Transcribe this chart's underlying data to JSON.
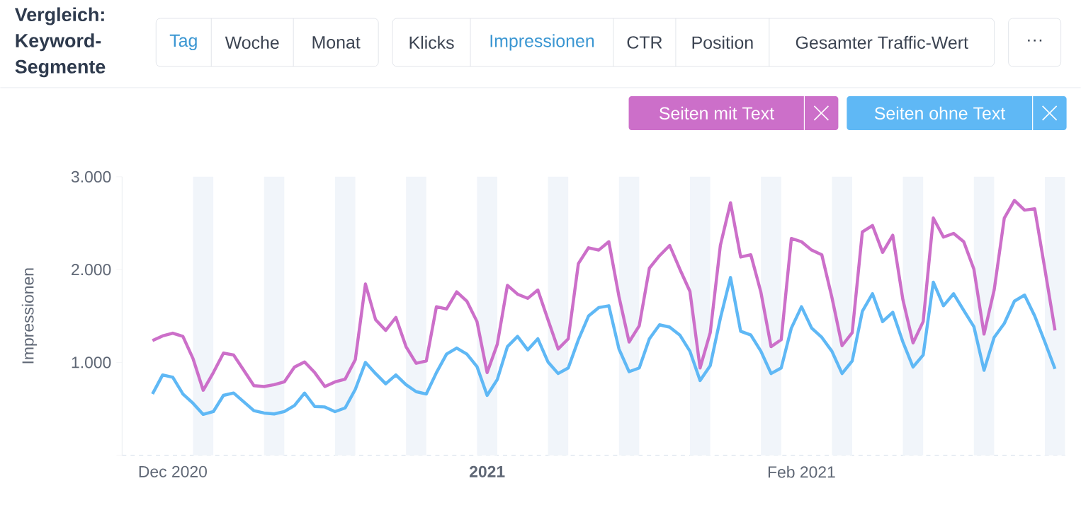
{
  "chart_data": {
    "type": "line",
    "title": "Vergleich: Keyword-Segmente",
    "ylabel": "Impressionen",
    "annotations": [
      "Tag",
      "Woche",
      "Monat",
      "Klicks",
      "Impressionen",
      "CTR",
      "Position",
      "Gesamter Traffic-Wert",
      "···"
    ],
    "x": [
      "2020-11-29",
      "2020-11-30",
      "2020-12-01",
      "2020-12-02",
      "2020-12-03",
      "2020-12-04",
      "2020-12-05",
      "2020-12-06",
      "2020-12-07",
      "2020-12-08",
      "2020-12-09",
      "2020-12-10",
      "2020-12-11",
      "2020-12-12",
      "2020-12-13",
      "2020-12-14",
      "2020-12-15",
      "2020-12-16",
      "2020-12-17",
      "2020-12-18",
      "2020-12-19",
      "2020-12-20",
      "2020-12-21",
      "2020-12-22",
      "2020-12-23",
      "2020-12-24",
      "2020-12-25",
      "2020-12-26",
      "2020-12-27",
      "2020-12-28",
      "2020-12-29",
      "2020-12-30",
      "2020-12-31",
      "2021-01-01",
      "2021-01-02",
      "2021-01-03",
      "2021-01-04",
      "2021-01-05",
      "2021-01-06",
      "2021-01-07",
      "2021-01-08",
      "2021-01-09",
      "2021-01-10",
      "2021-01-11",
      "2021-01-12",
      "2021-01-13",
      "2021-01-14",
      "2021-01-15",
      "2021-01-16",
      "2021-01-17",
      "2021-01-18",
      "2021-01-19",
      "2021-01-20",
      "2021-01-21",
      "2021-01-22",
      "2021-01-23",
      "2021-01-24",
      "2021-01-25",
      "2021-01-26",
      "2021-01-27",
      "2021-01-28",
      "2021-01-29",
      "2021-01-30",
      "2021-01-31",
      "2021-02-01",
      "2021-02-02",
      "2021-02-03",
      "2021-02-04",
      "2021-02-05",
      "2021-02-06",
      "2021-02-07",
      "2021-02-08",
      "2021-02-09",
      "2021-02-10",
      "2021-02-11",
      "2021-02-12",
      "2021-02-13",
      "2021-02-14",
      "2021-02-15",
      "2021-02-16",
      "2021-02-17",
      "2021-02-18",
      "2021-02-19",
      "2021-02-20",
      "2021-02-21",
      "2021-02-22",
      "2021-02-23",
      "2021-02-24",
      "2021-02-25",
      "2021-02-26"
    ],
    "series": [
      {
        "name": "Seiten mit Text",
        "color": "#cc6fc9",
        "values": [
          1235,
          1285,
          1315,
          1280,
          1040,
          700,
          890,
          1100,
          1080,
          915,
          750,
          740,
          760,
          790,
          950,
          1005,
          890,
          740,
          790,
          820,
          1030,
          1845,
          1460,
          1345,
          1485,
          1170,
          990,
          1015,
          1600,
          1575,
          1760,
          1660,
          1440,
          890,
          1195,
          1830,
          1735,
          1690,
          1780,
          1460,
          1145,
          1255,
          2065,
          2235,
          2210,
          2300,
          1710,
          1220,
          1395,
          2015,
          2150,
          2260,
          2005,
          1765,
          940,
          1320,
          2260,
          2720,
          2135,
          2160,
          1755,
          1170,
          1245,
          2335,
          2300,
          2210,
          2160,
          1700,
          1180,
          1320,
          2405,
          2475,
          2185,
          2370,
          1675,
          1210,
          1440,
          2555,
          2350,
          2390,
          2300,
          2005,
          1305,
          1780,
          2555,
          2745,
          2640,
          2655,
          2005,
          1345
        ]
      },
      {
        "name": "Seiten ohne Text",
        "color": "#5fb8f5",
        "values": [
          660,
          865,
          840,
          660,
          560,
          440,
          470,
          645,
          670,
          575,
          480,
          455,
          445,
          470,
          535,
          670,
          525,
          520,
          470,
          510,
          710,
          1000,
          880,
          770,
          865,
          760,
          685,
          660,
          890,
          1090,
          1155,
          1090,
          955,
          645,
          815,
          1170,
          1280,
          1135,
          1255,
          1005,
          880,
          940,
          1245,
          1500,
          1590,
          1610,
          1145,
          900,
          940,
          1255,
          1405,
          1380,
          1295,
          1120,
          805,
          965,
          1475,
          1915,
          1335,
          1295,
          1120,
          880,
          940,
          1370,
          1600,
          1370,
          1270,
          1120,
          880,
          1015,
          1550,
          1740,
          1440,
          1540,
          1220,
          950,
          1080,
          1865,
          1610,
          1740,
          1560,
          1385,
          915,
          1270,
          1420,
          1660,
          1725,
          1500,
          1220,
          930
        ]
      }
    ],
    "xlim": [
      "2020-11-26",
      "2021-02-27"
    ],
    "ylim": [
      0,
      3000
    ],
    "xticks": [
      {
        "value": "2020-12-01",
        "label": "Dec 2020"
      },
      {
        "value": "2021-01-01",
        "label": "2021"
      },
      {
        "value": "2021-02-01",
        "label": "Feb 2021"
      }
    ],
    "yticks": [
      {
        "value": 0,
        "label": null
      },
      {
        "value": 1000,
        "label": "1.000"
      },
      {
        "value": 2000,
        "label": "2.000"
      },
      {
        "value": 3000,
        "label": "3.000"
      }
    ],
    "bands": [
      {
        "axis": "x",
        "from": "2020-12-03",
        "to": "2020-12-05",
        "color": "#f1f5fa"
      },
      {
        "axis": "x",
        "from": "2020-12-10",
        "to": "2020-12-12",
        "color": "#f1f5fa"
      },
      {
        "axis": "x",
        "from": "2020-12-17",
        "to": "2020-12-19",
        "color": "#f1f5fa"
      },
      {
        "axis": "x",
        "from": "2020-12-24",
        "to": "2020-12-26",
        "color": "#f1f5fa"
      },
      {
        "axis": "x",
        "from": "2020-12-31",
        "to": "2021-01-02",
        "color": "#f1f5fa"
      },
      {
        "axis": "x",
        "from": "2021-01-07",
        "to": "2021-01-09",
        "color": "#f1f5fa"
      },
      {
        "axis": "x",
        "from": "2021-01-14",
        "to": "2021-01-16",
        "color": "#f1f5fa"
      },
      {
        "axis": "x",
        "from": "2021-01-21",
        "to": "2021-01-23",
        "color": "#f1f5fa"
      },
      {
        "axis": "x",
        "from": "2021-01-28",
        "to": "2021-01-30",
        "color": "#f1f5fa"
      },
      {
        "axis": "x",
        "from": "2021-02-04",
        "to": "2021-02-06",
        "color": "#f1f5fa"
      },
      {
        "axis": "x",
        "from": "2021-02-11",
        "to": "2021-02-13",
        "color": "#f1f5fa"
      },
      {
        "axis": "x",
        "from": "2021-02-18",
        "to": "2021-02-20",
        "color": "#f1f5fa"
      },
      {
        "axis": "x",
        "from": "2021-02-25",
        "to": "2021-02-27",
        "color": "#f1f5fa"
      }
    ],
    "legend": "top right",
    "line_style": "solid"
  }
}
